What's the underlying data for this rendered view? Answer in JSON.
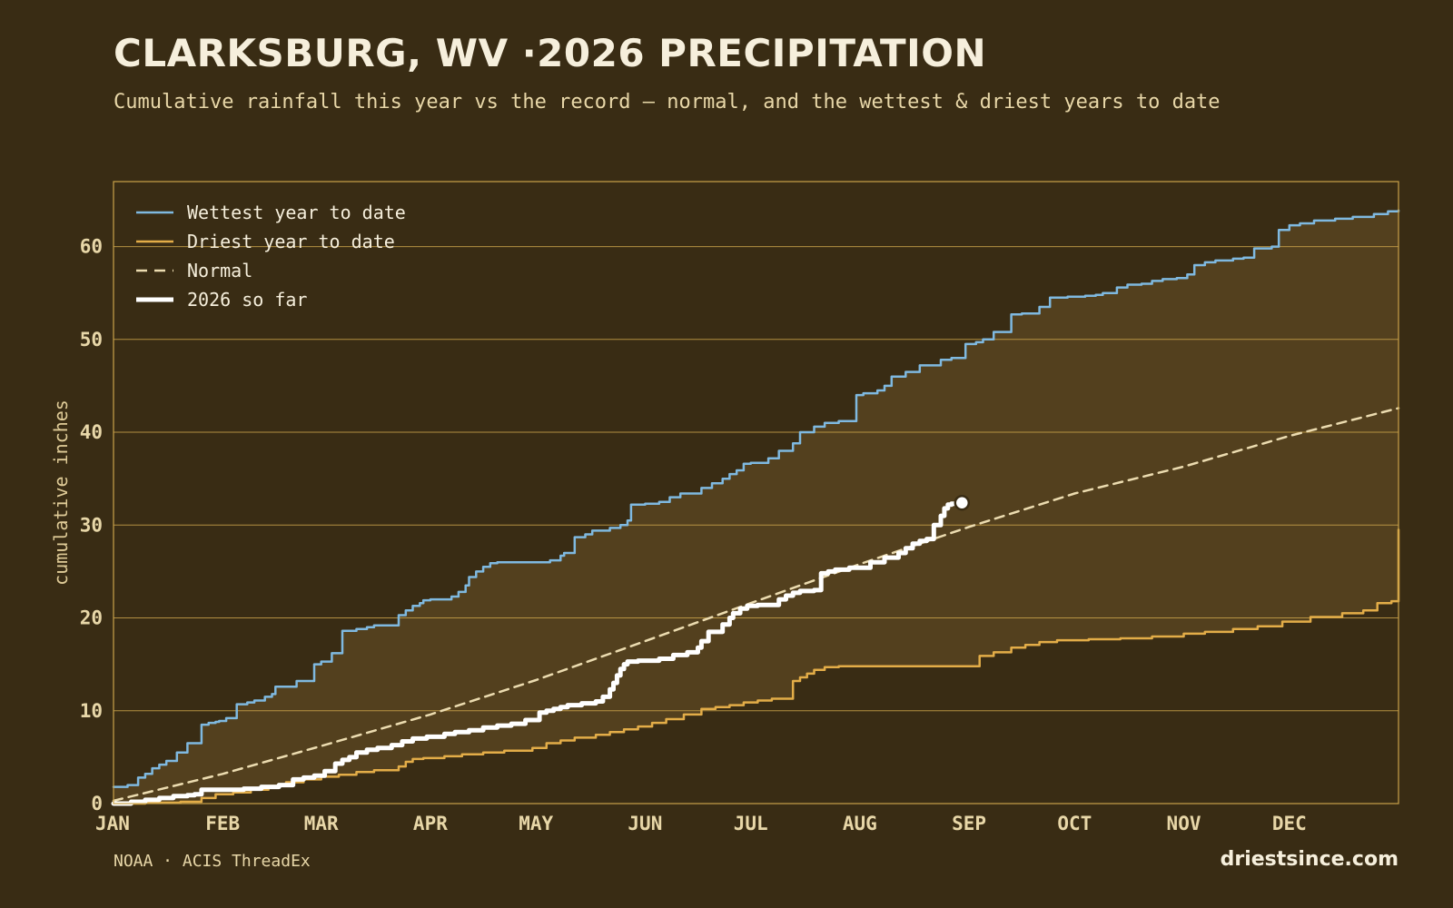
{
  "title": "CLARKSBURG, WV ·2026 PRECIPITATION",
  "subtitle": "Cumulative rainfall this year vs the record — normal, and the wettest & driest years to date",
  "source": "NOAA · ACIS ThreadEx",
  "brand": "driestsince.com",
  "colors": {
    "background": "#392c14",
    "band_fill": "#53401e",
    "grid": "#c9a24a",
    "wettest": "#7fb9e0",
    "driest": "#e3ad48",
    "normal": "#ecdcb0",
    "current": "#ffffff"
  },
  "chart_data": {
    "type": "line",
    "xlabel": "",
    "ylabel": "cumulative inches",
    "xlim": [
      1,
      366
    ],
    "ylim": [
      0,
      67
    ],
    "y_ticks": [
      0,
      10,
      20,
      30,
      40,
      50,
      60
    ],
    "month_ticks": [
      {
        "label": "JAN",
        "day": 1
      },
      {
        "label": "FEB",
        "day": 32
      },
      {
        "label": "MAR",
        "day": 60
      },
      {
        "label": "APR",
        "day": 91
      },
      {
        "label": "MAY",
        "day": 121
      },
      {
        "label": "JUN",
        "day": 152
      },
      {
        "label": "JUL",
        "day": 182
      },
      {
        "label": "AUG",
        "day": 213
      },
      {
        "label": "SEP",
        "day": 244
      },
      {
        "label": "OCT",
        "day": 274
      },
      {
        "label": "NOV",
        "day": 305
      },
      {
        "label": "DEC",
        "day": 335
      }
    ],
    "grid": true,
    "legend_position": "top-left",
    "series": [
      {
        "name": "Wettest year to date",
        "key": "wettest",
        "style": "step",
        "x": [
          1,
          5,
          8,
          10,
          12,
          14,
          16,
          19,
          22,
          26,
          28,
          30,
          31,
          33,
          36,
          39,
          41,
          44,
          46,
          47,
          53,
          58,
          60,
          63,
          66,
          70,
          73,
          75,
          82,
          84,
          86,
          88,
          89,
          91,
          92,
          97,
          99,
          101,
          102,
          104,
          106,
          108,
          110,
          113,
          117,
          125,
          128,
          129,
          132,
          135,
          137,
          142,
          145,
          147,
          148,
          152,
          156,
          159,
          162,
          168,
          171,
          174,
          176,
          178,
          180,
          182,
          187,
          190,
          194,
          196,
          200,
          203,
          207,
          212,
          214,
          218,
          220,
          222,
          226,
          230,
          236,
          239,
          243,
          246,
          248,
          251,
          256,
          259,
          264,
          267,
          272,
          277,
          280,
          282,
          286,
          289,
          293,
          296,
          299,
          303,
          306,
          308,
          311,
          314,
          319,
          322,
          325,
          330,
          332,
          335,
          338,
          342,
          348,
          353,
          359,
          363,
          366
        ],
        "y": [
          1.8,
          2.0,
          2.8,
          3.2,
          3.8,
          4.2,
          4.6,
          5.5,
          6.5,
          8.5,
          8.7,
          8.8,
          8.9,
          9.2,
          10.7,
          10.9,
          11.1,
          11.5,
          11.8,
          12.6,
          13.2,
          15.0,
          15.3,
          16.2,
          18.6,
          18.8,
          19.0,
          19.2,
          20.3,
          20.8,
          21.3,
          21.6,
          21.9,
          22.0,
          22.0,
          22.3,
          22.8,
          23.5,
          24.4,
          25.0,
          25.5,
          25.9,
          26.0,
          26.0,
          26.0,
          26.2,
          26.7,
          27.0,
          28.7,
          29.0,
          29.4,
          29.7,
          30.0,
          30.5,
          32.2,
          32.3,
          32.5,
          33.0,
          33.4,
          34.0,
          34.5,
          35.0,
          35.5,
          35.9,
          36.6,
          36.7,
          37.2,
          38.0,
          38.8,
          40.0,
          40.6,
          41.0,
          41.2,
          44.0,
          44.2,
          44.5,
          45.0,
          46.0,
          46.5,
          47.2,
          47.8,
          48.0,
          49.5,
          49.7,
          50.0,
          50.8,
          52.7,
          52.8,
          53.5,
          54.5,
          54.6,
          54.7,
          54.8,
          55.0,
          55.6,
          55.9,
          56.0,
          56.3,
          56.5,
          56.6,
          57.0,
          58.0,
          58.3,
          58.5,
          58.7,
          58.8,
          59.8,
          60.0,
          61.8,
          62.3,
          62.5,
          62.8,
          63.0,
          63.2,
          63.5,
          63.8,
          63.9
        ]
      },
      {
        "name": "Driest year to date",
        "key": "driest",
        "style": "step",
        "x": [
          1,
          10,
          20,
          26,
          30,
          35,
          40,
          45,
          50,
          55,
          60,
          65,
          70,
          75,
          82,
          84,
          86,
          89,
          95,
          100,
          106,
          112,
          120,
          124,
          128,
          132,
          138,
          142,
          146,
          150,
          154,
          158,
          163,
          168,
          172,
          176,
          180,
          184,
          188,
          194,
          196,
          198,
          200,
          203,
          207,
          215,
          230,
          245,
          247,
          251,
          256,
          260,
          264,
          269,
          278,
          287,
          296,
          305,
          311,
          319,
          326,
          333,
          341,
          350,
          356,
          360,
          364,
          366
        ],
        "y": [
          0.0,
          0.1,
          0.2,
          0.6,
          1.0,
          1.2,
          1.5,
          1.9,
          2.3,
          2.6,
          2.9,
          3.1,
          3.4,
          3.6,
          4.0,
          4.5,
          4.8,
          4.9,
          5.1,
          5.3,
          5.5,
          5.7,
          6.0,
          6.5,
          6.8,
          7.1,
          7.4,
          7.7,
          8.0,
          8.3,
          8.7,
          9.1,
          9.6,
          10.2,
          10.4,
          10.6,
          10.9,
          11.1,
          11.3,
          13.2,
          13.6,
          14.0,
          14.4,
          14.7,
          14.8,
          14.8,
          14.8,
          14.8,
          15.9,
          16.3,
          16.8,
          17.1,
          17.4,
          17.6,
          17.7,
          17.8,
          18.0,
          18.3,
          18.5,
          18.8,
          19.1,
          19.6,
          20.1,
          20.5,
          20.8,
          21.6,
          21.8,
          29.5
        ]
      },
      {
        "name": "Normal",
        "key": "normal",
        "style": "line",
        "x": [
          1,
          32,
          60,
          91,
          121,
          152,
          182,
          213,
          244,
          274,
          305,
          335,
          366
        ],
        "y": [
          0.3,
          3.2,
          6.2,
          9.6,
          13.3,
          17.5,
          21.6,
          25.8,
          29.8,
          33.4,
          36.3,
          39.6,
          42.6
        ]
      },
      {
        "name": "2026 so far",
        "key": "current",
        "style": "step",
        "x": [
          1,
          6,
          10,
          14,
          18,
          22,
          24,
          26,
          28,
          32,
          38,
          43,
          48,
          52,
          55,
          58,
          61,
          64,
          66,
          68,
          70,
          73,
          76,
          80,
          83,
          86,
          90,
          95,
          98,
          102,
          106,
          110,
          114,
          118,
          122,
          124,
          126,
          128,
          130,
          134,
          138,
          140,
          142,
          143,
          144,
          145,
          146,
          147,
          150,
          156,
          160,
          164,
          167,
          168,
          170,
          174,
          176,
          177,
          179,
          181,
          184,
          190,
          192,
          194,
          196,
          200,
          202,
          204,
          206,
          210,
          216,
          220,
          224,
          226,
          228,
          230,
          232,
          234,
          236,
          237,
          238,
          239,
          242
        ],
        "y": [
          0.0,
          0.2,
          0.4,
          0.6,
          0.8,
          0.9,
          1.0,
          1.5,
          1.5,
          1.5,
          1.6,
          1.8,
          2.0,
          2.6,
          2.8,
          3.0,
          3.5,
          4.3,
          4.7,
          5.0,
          5.5,
          5.8,
          6.0,
          6.3,
          6.7,
          7.0,
          7.2,
          7.5,
          7.7,
          7.9,
          8.2,
          8.4,
          8.6,
          9.0,
          9.8,
          10.0,
          10.2,
          10.4,
          10.6,
          10.8,
          11.0,
          11.5,
          12.3,
          13.0,
          13.8,
          14.5,
          15.0,
          15.3,
          15.4,
          15.6,
          16.0,
          16.3,
          16.8,
          17.5,
          18.5,
          19.3,
          20.0,
          20.5,
          21.0,
          21.3,
          21.4,
          22.0,
          22.4,
          22.7,
          22.9,
          23.0,
          24.8,
          25.0,
          25.2,
          25.4,
          26.0,
          26.5,
          27.0,
          27.5,
          28.0,
          28.3,
          28.5,
          30.0,
          31.0,
          31.8,
          32.2,
          32.3,
          32.4
        ]
      }
    ]
  }
}
